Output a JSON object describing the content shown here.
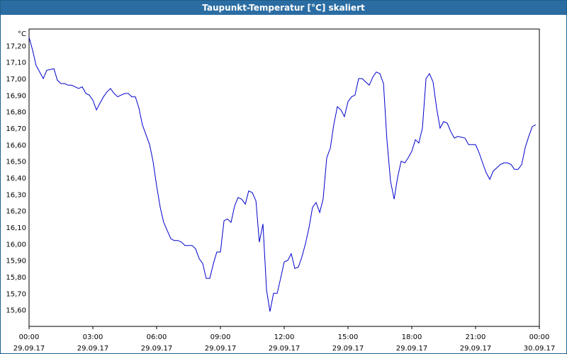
{
  "window": {
    "title": "Taupunkt-Temperatur [°C] skaliert"
  },
  "chart_data": {
    "type": "line",
    "title": "Taupunkt-Temperatur [°C] skaliert",
    "y_unit": "°C",
    "xlabel": "",
    "ylabel": "",
    "xlim_hours": [
      0,
      24
    ],
    "ylim": [
      15.5,
      17.3
    ],
    "grid": true,
    "line_color": "#0000cc",
    "y_ticks": [
      {
        "value": 17.2,
        "label": "17,20"
      },
      {
        "value": 17.1,
        "label": "17,10"
      },
      {
        "value": 17.0,
        "label": "17,00"
      },
      {
        "value": 16.9,
        "label": "16,90"
      },
      {
        "value": 16.8,
        "label": "16,80"
      },
      {
        "value": 16.7,
        "label": "16,70"
      },
      {
        "value": 16.6,
        "label": "16,60"
      },
      {
        "value": 16.5,
        "label": "16,50"
      },
      {
        "value": 16.4,
        "label": "16,40"
      },
      {
        "value": 16.3,
        "label": "16,30"
      },
      {
        "value": 16.2,
        "label": "16,20"
      },
      {
        "value": 16.1,
        "label": "16,10"
      },
      {
        "value": 16.0,
        "label": "16,00"
      },
      {
        "value": 15.9,
        "label": "15,90"
      },
      {
        "value": 15.8,
        "label": "15,80"
      },
      {
        "value": 15.7,
        "label": "15,70"
      },
      {
        "value": 15.6,
        "label": "15,60"
      }
    ],
    "x_ticks": [
      {
        "hour": 0,
        "time": "00:00",
        "date": "29.09.17"
      },
      {
        "hour": 3,
        "time": "03:00",
        "date": "29.09.17"
      },
      {
        "hour": 6,
        "time": "06:00",
        "date": "29.09.17"
      },
      {
        "hour": 9,
        "time": "09:00",
        "date": "29.09.17"
      },
      {
        "hour": 12,
        "time": "12:00",
        "date": "29.09.17"
      },
      {
        "hour": 15,
        "time": "15:00",
        "date": "29.09.17"
      },
      {
        "hour": 18,
        "time": "18:00",
        "date": "29.09.17"
      },
      {
        "hour": 21,
        "time": "21:00",
        "date": "29.09.17"
      },
      {
        "hour": 24,
        "time": "00:00",
        "date": "30.09.17"
      }
    ],
    "series": [
      {
        "points": [
          [
            0.0,
            17.25
          ],
          [
            0.17,
            17.17
          ],
          [
            0.33,
            17.08
          ],
          [
            0.5,
            17.04
          ],
          [
            0.67,
            17.0
          ],
          [
            0.83,
            17.05
          ],
          [
            1.17,
            17.06
          ],
          [
            1.33,
            16.99
          ],
          [
            1.5,
            16.97
          ],
          [
            1.67,
            16.97
          ],
          [
            1.83,
            16.96
          ],
          [
            2.0,
            16.96
          ],
          [
            2.17,
            16.95
          ],
          [
            2.33,
            16.94
          ],
          [
            2.5,
            16.95
          ],
          [
            2.67,
            16.91
          ],
          [
            2.83,
            16.9
          ],
          [
            3.0,
            16.87
          ],
          [
            3.17,
            16.81
          ],
          [
            3.33,
            16.85
          ],
          [
            3.5,
            16.89
          ],
          [
            3.67,
            16.92
          ],
          [
            3.83,
            16.94
          ],
          [
            4.0,
            16.91
          ],
          [
            4.17,
            16.89
          ],
          [
            4.33,
            16.9
          ],
          [
            4.5,
            16.91
          ],
          [
            4.67,
            16.91
          ],
          [
            4.83,
            16.89
          ],
          [
            5.0,
            16.89
          ],
          [
            5.17,
            16.82
          ],
          [
            5.33,
            16.72
          ],
          [
            5.5,
            16.66
          ],
          [
            5.67,
            16.6
          ],
          [
            5.83,
            16.5
          ],
          [
            6.0,
            16.35
          ],
          [
            6.17,
            16.22
          ],
          [
            6.33,
            16.13
          ],
          [
            6.5,
            16.08
          ],
          [
            6.67,
            16.03
          ],
          [
            6.83,
            16.02
          ],
          [
            7.0,
            16.02
          ],
          [
            7.17,
            16.01
          ],
          [
            7.33,
            15.99
          ],
          [
            7.5,
            15.99
          ],
          [
            7.67,
            15.99
          ],
          [
            7.83,
            15.97
          ],
          [
            8.0,
            15.91
          ],
          [
            8.17,
            15.88
          ],
          [
            8.33,
            15.79
          ],
          [
            8.5,
            15.79
          ],
          [
            8.67,
            15.88
          ],
          [
            8.83,
            15.95
          ],
          [
            9.0,
            15.95
          ],
          [
            9.17,
            16.14
          ],
          [
            9.33,
            16.15
          ],
          [
            9.5,
            16.13
          ],
          [
            9.67,
            16.23
          ],
          [
            9.83,
            16.28
          ],
          [
            10.0,
            16.27
          ],
          [
            10.17,
            16.24
          ],
          [
            10.33,
            16.32
          ],
          [
            10.5,
            16.31
          ],
          [
            10.67,
            16.26
          ],
          [
            10.83,
            16.01
          ],
          [
            11.0,
            16.12
          ],
          [
            11.17,
            15.72
          ],
          [
            11.33,
            15.59
          ],
          [
            11.5,
            15.7
          ],
          [
            11.67,
            15.7
          ],
          [
            11.83,
            15.79
          ],
          [
            12.0,
            15.89
          ],
          [
            12.17,
            15.9
          ],
          [
            12.33,
            15.94
          ],
          [
            12.5,
            15.85
          ],
          [
            12.67,
            15.86
          ],
          [
            12.83,
            15.92
          ],
          [
            13.0,
            16.0
          ],
          [
            13.17,
            16.1
          ],
          [
            13.33,
            16.22
          ],
          [
            13.5,
            16.25
          ],
          [
            13.67,
            16.19
          ],
          [
            13.83,
            16.27
          ],
          [
            14.0,
            16.52
          ],
          [
            14.17,
            16.58
          ],
          [
            14.33,
            16.72
          ],
          [
            14.5,
            16.83
          ],
          [
            14.67,
            16.81
          ],
          [
            14.83,
            16.77
          ],
          [
            15.0,
            16.86
          ],
          [
            15.17,
            16.89
          ],
          [
            15.33,
            16.9
          ],
          [
            15.5,
            17.0
          ],
          [
            15.67,
            17.0
          ],
          [
            15.83,
            16.98
          ],
          [
            16.0,
            16.96
          ],
          [
            16.17,
            17.01
          ],
          [
            16.33,
            17.04
          ],
          [
            16.5,
            17.03
          ],
          [
            16.67,
            16.97
          ],
          [
            16.83,
            16.63
          ],
          [
            17.0,
            16.38
          ],
          [
            17.17,
            16.27
          ],
          [
            17.33,
            16.4
          ],
          [
            17.5,
            16.5
          ],
          [
            17.67,
            16.49
          ],
          [
            17.83,
            16.52
          ],
          [
            18.0,
            16.56
          ],
          [
            18.17,
            16.63
          ],
          [
            18.33,
            16.61
          ],
          [
            18.5,
            16.7
          ],
          [
            18.67,
            17.0
          ],
          [
            18.83,
            17.03
          ],
          [
            19.0,
            16.98
          ],
          [
            19.17,
            16.82
          ],
          [
            19.33,
            16.7
          ],
          [
            19.5,
            16.74
          ],
          [
            19.67,
            16.73
          ],
          [
            19.83,
            16.68
          ],
          [
            20.0,
            16.64
          ],
          [
            20.17,
            16.65
          ],
          [
            20.5,
            16.64
          ],
          [
            20.67,
            16.6
          ],
          [
            21.0,
            16.6
          ],
          [
            21.17,
            16.55
          ],
          [
            21.33,
            16.49
          ],
          [
            21.5,
            16.43
          ],
          [
            21.67,
            16.39
          ],
          [
            21.83,
            16.44
          ],
          [
            22.0,
            16.46
          ],
          [
            22.17,
            16.48
          ],
          [
            22.33,
            16.49
          ],
          [
            22.5,
            16.49
          ],
          [
            22.67,
            16.48
          ],
          [
            22.83,
            16.45
          ],
          [
            23.0,
            16.45
          ],
          [
            23.17,
            16.48
          ],
          [
            23.33,
            16.58
          ],
          [
            23.5,
            16.65
          ],
          [
            23.67,
            16.71
          ],
          [
            23.83,
            16.72
          ]
        ]
      }
    ]
  }
}
